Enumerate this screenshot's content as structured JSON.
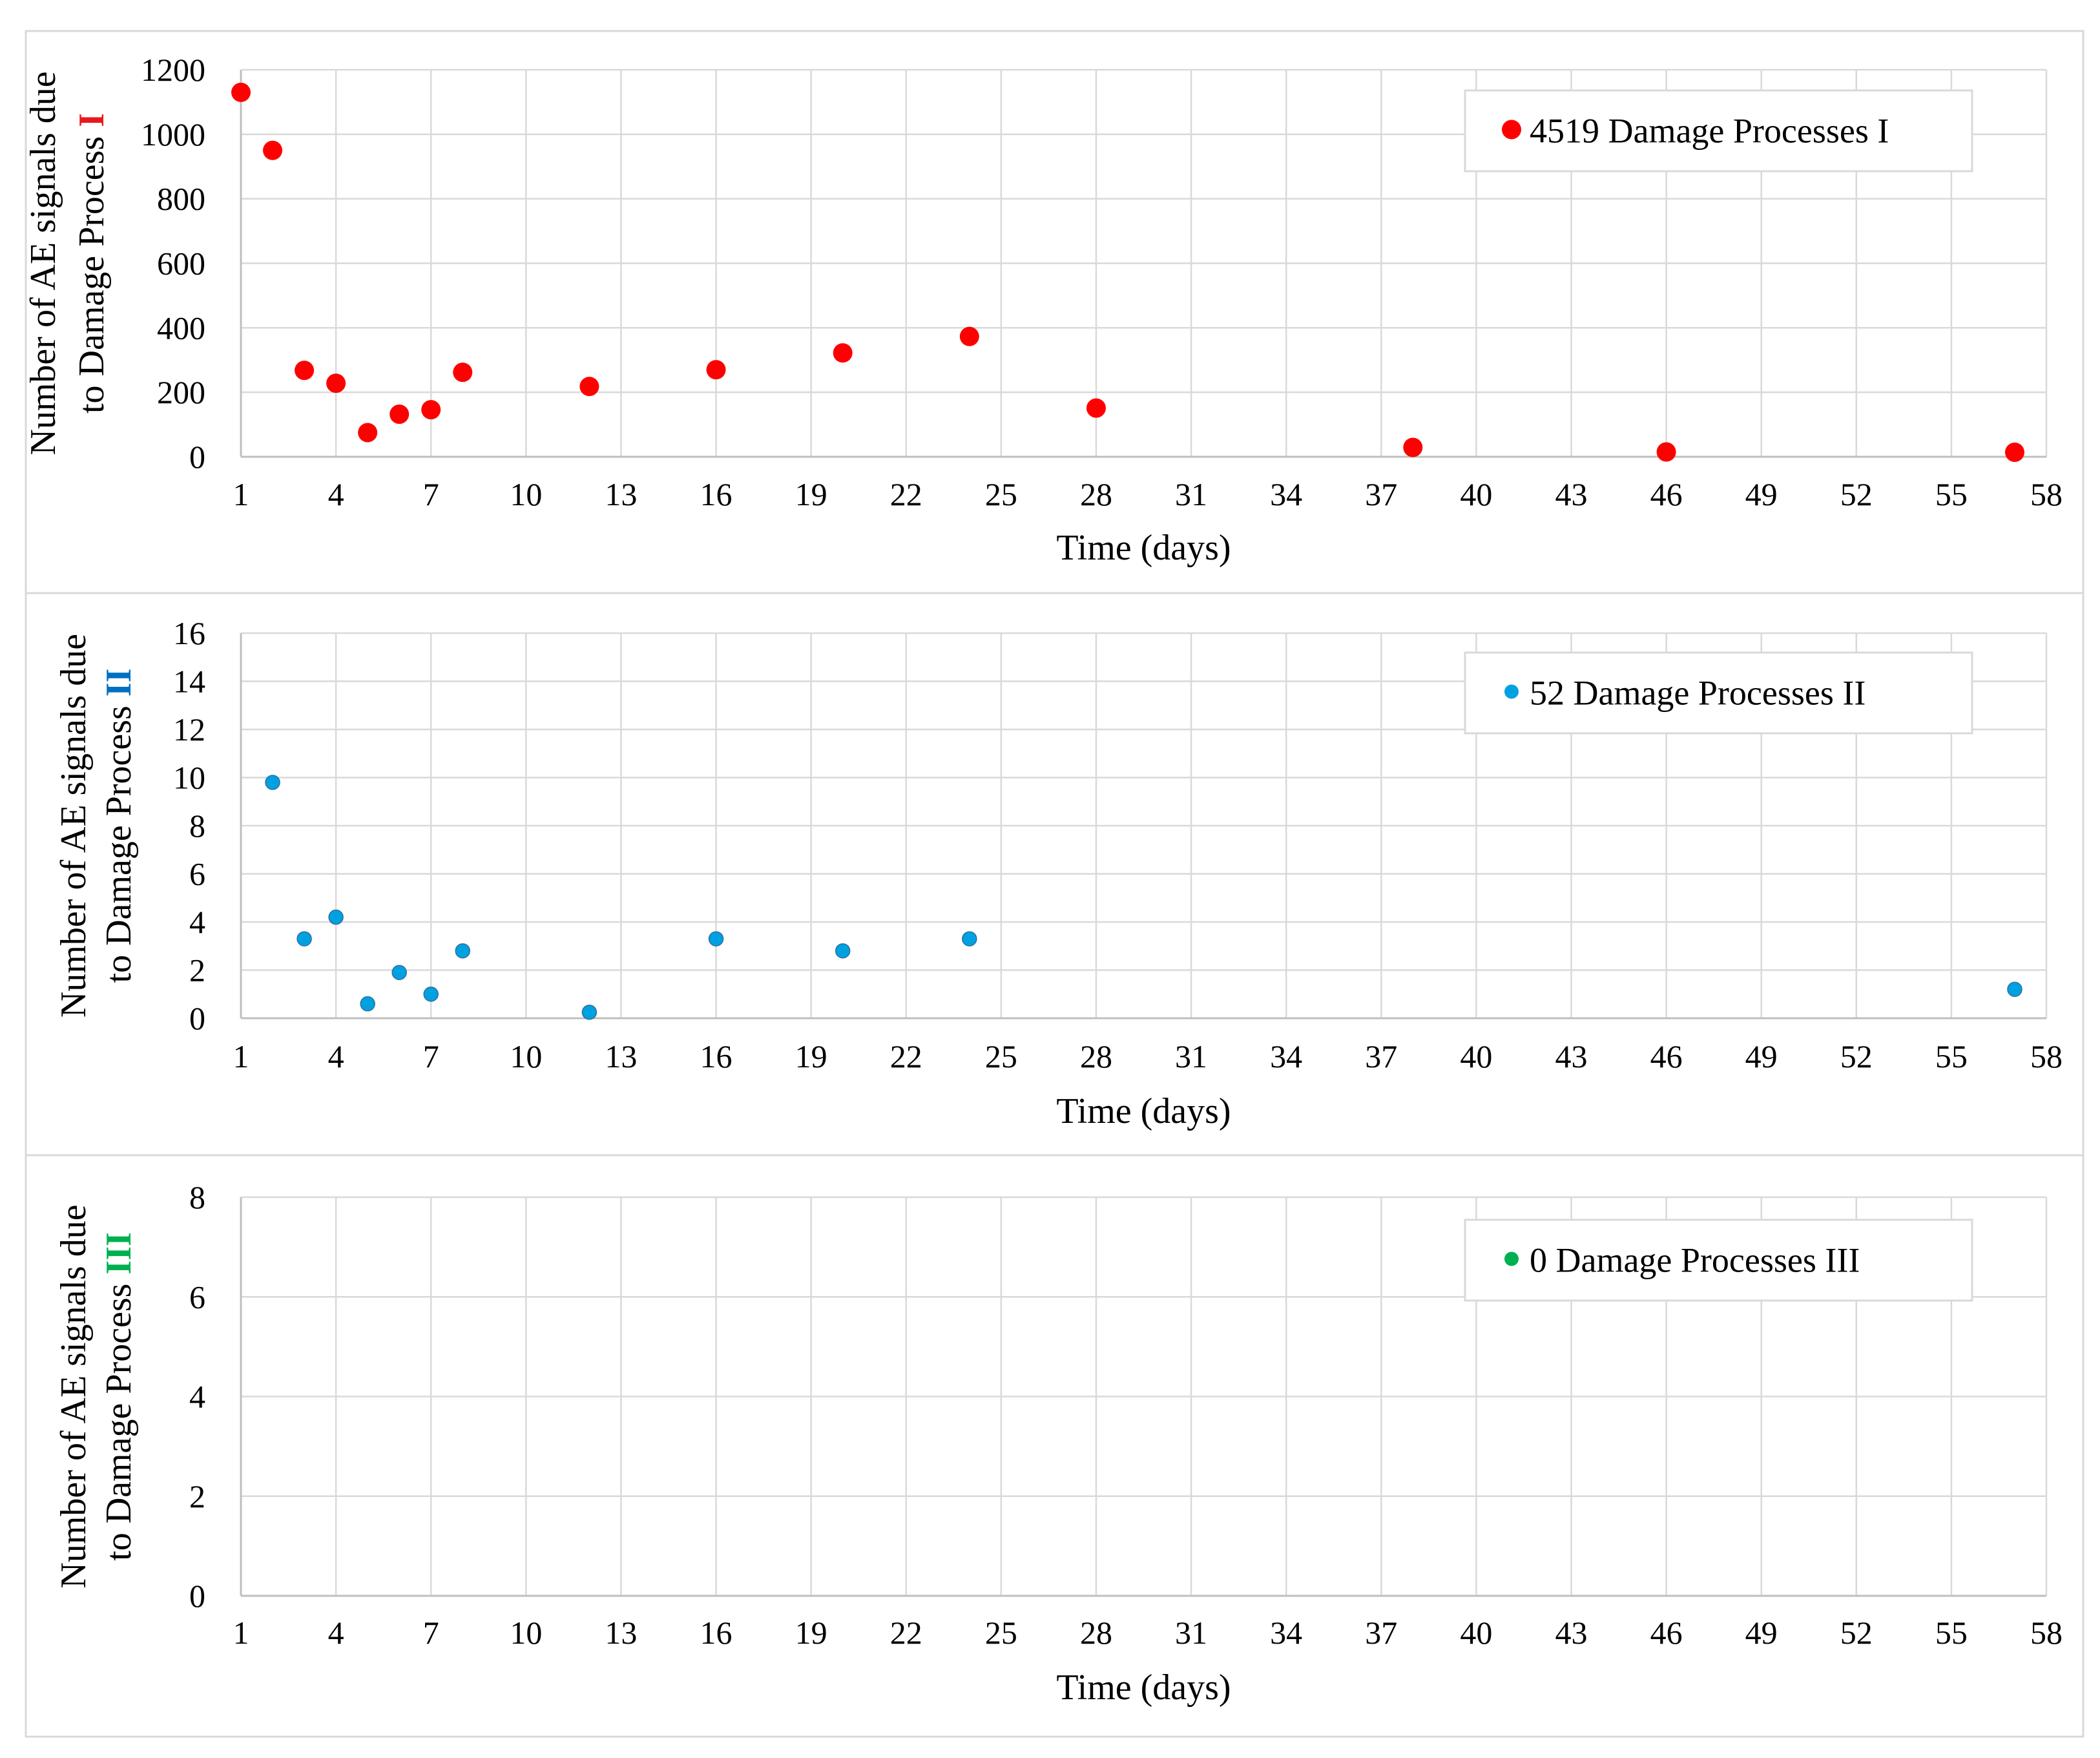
{
  "chart_data": [
    {
      "type": "scatter",
      "xlabel": "Time (days)",
      "ylabel_line1": "Number of AE signals due",
      "ylabel_line2": "to Damage Process",
      "ylabel_numeral": "I",
      "numeral_color": "#e8191d",
      "marker_color": "#ff0000",
      "legend": "4519 Damage Processes I",
      "xlim": [
        1,
        58
      ],
      "xticks": [
        1,
        4,
        7,
        10,
        13,
        16,
        19,
        22,
        25,
        28,
        31,
        34,
        37,
        40,
        43,
        46,
        49,
        52,
        55,
        58
      ],
      "ylim": [
        0,
        1200
      ],
      "yticks": [
        0,
        200,
        400,
        600,
        800,
        1000,
        1200
      ],
      "series": [
        {
          "name": "4519 Damage Processes I",
          "x": [
            1,
            2,
            3,
            4,
            5,
            6,
            7,
            8,
            12,
            16,
            20,
            24,
            28,
            38,
            46,
            57
          ],
          "y": [
            1130,
            950,
            268,
            228,
            75,
            132,
            146,
            262,
            218,
            270,
            322,
            373,
            151,
            29,
            15,
            14
          ]
        }
      ]
    },
    {
      "type": "scatter",
      "xlabel": "Time (days)",
      "ylabel_line1": "Number of AE signals due",
      "ylabel_line2": "to Damage Process",
      "ylabel_numeral": "II",
      "numeral_color": "#0070c0",
      "marker_color": "#00a1e0",
      "legend": "52 Damage Processes II",
      "xlim": [
        1,
        58
      ],
      "xticks": [
        1,
        4,
        7,
        10,
        13,
        16,
        19,
        22,
        25,
        28,
        31,
        34,
        37,
        40,
        43,
        46,
        49,
        52,
        55,
        58
      ],
      "ylim": [
        0,
        16
      ],
      "yticks": [
        0,
        2,
        4,
        6,
        8,
        10,
        12,
        14,
        16
      ],
      "series": [
        {
          "name": "52 Damage Processes II",
          "x": [
            2,
            3,
            4,
            5,
            6,
            7,
            8,
            12,
            16,
            20,
            24,
            57
          ],
          "y": [
            9.8,
            3.3,
            4.2,
            0.6,
            1.9,
            1.0,
            2.8,
            0.25,
            3.3,
            2.8,
            3.3,
            1.2
          ]
        }
      ]
    },
    {
      "type": "scatter",
      "xlabel": "Time (days)",
      "ylabel_line1": "Number of AE signals due",
      "ylabel_line2": "to Damage Process",
      "ylabel_numeral": "III",
      "numeral_color": "#00b050",
      "marker_color": "#00b050",
      "legend": "0 Damage Processes III",
      "xlim": [
        1,
        58
      ],
      "xticks": [
        1,
        4,
        7,
        10,
        13,
        16,
        19,
        22,
        25,
        28,
        31,
        34,
        37,
        40,
        43,
        46,
        49,
        52,
        55,
        58
      ],
      "ylim": [
        0,
        8
      ],
      "yticks": [
        0,
        2,
        4,
        6,
        8
      ],
      "series": [
        {
          "name": "0 Damage Processes III",
          "x": [],
          "y": []
        }
      ]
    }
  ]
}
